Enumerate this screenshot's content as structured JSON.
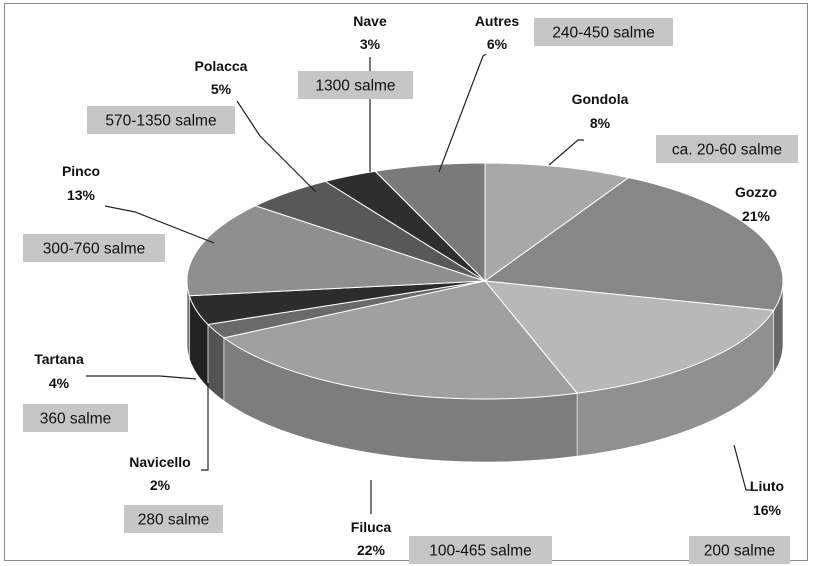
{
  "chart_data": {
    "type": "pie",
    "is_3d": true,
    "title": "",
    "legend": "none",
    "slices": [
      {
        "name": "Gondola",
        "value": 8,
        "color": "#a8a8a8",
        "capacity": "ca. 20-60 salme"
      },
      {
        "name": "Gozzo",
        "value": 21,
        "color": "#878787",
        "capacity": ""
      },
      {
        "name": "Liuto",
        "value": 16,
        "color": "#b8b8b8",
        "capacity": "200 salme"
      },
      {
        "name": "Filuca",
        "value": 22,
        "color": "#a0a0a0",
        "capacity": "100-465 salme"
      },
      {
        "name": "Navicello",
        "value": 2,
        "color": "#6a6a6a",
        "capacity": "280 salme"
      },
      {
        "name": "Tartana",
        "value": 4,
        "color": "#2c2c2c",
        "capacity": "360 salme"
      },
      {
        "name": "Pinco",
        "value": 13,
        "color": "#8f8f8f",
        "capacity": "300-760 salme"
      },
      {
        "name": "Polacca",
        "value": 5,
        "color": "#585858",
        "capacity": "570-1350 salme"
      },
      {
        "name": "Nave",
        "value": 3,
        "color": "#2e2e2e",
        "capacity": "1300 salme"
      },
      {
        "name": "Autres",
        "value": 6,
        "color": "#7a7a7a",
        "capacity": "240-450 salme"
      }
    ]
  }
}
